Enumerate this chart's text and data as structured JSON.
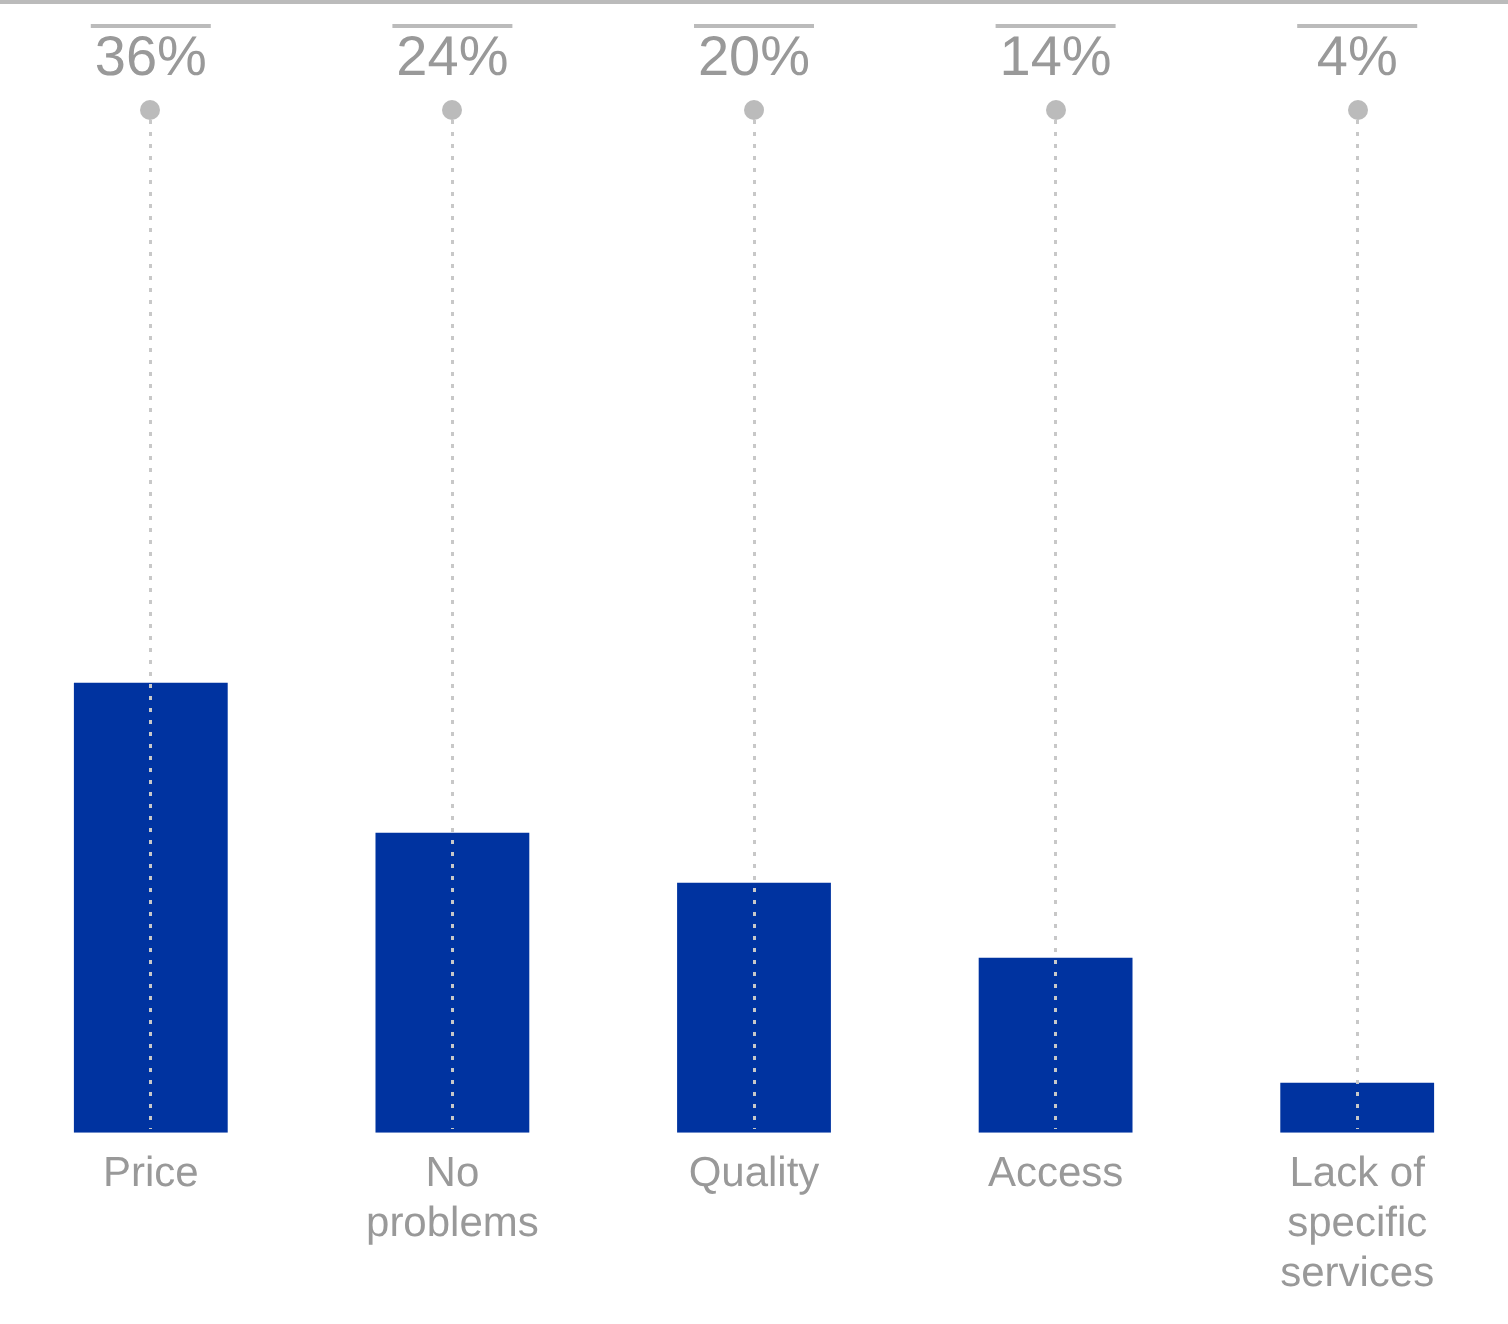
{
  "chart_data": {
    "type": "bar",
    "categories": [
      "Price",
      "No problems",
      "Quality",
      "Access",
      "Lack of specific services"
    ],
    "values": [
      36,
      24,
      20,
      14,
      4
    ],
    "value_labels": [
      "36%",
      "24%",
      "20%",
      "14%",
      "4%"
    ],
    "color": "#0033a0",
    "grid": "x",
    "legend": false
  }
}
